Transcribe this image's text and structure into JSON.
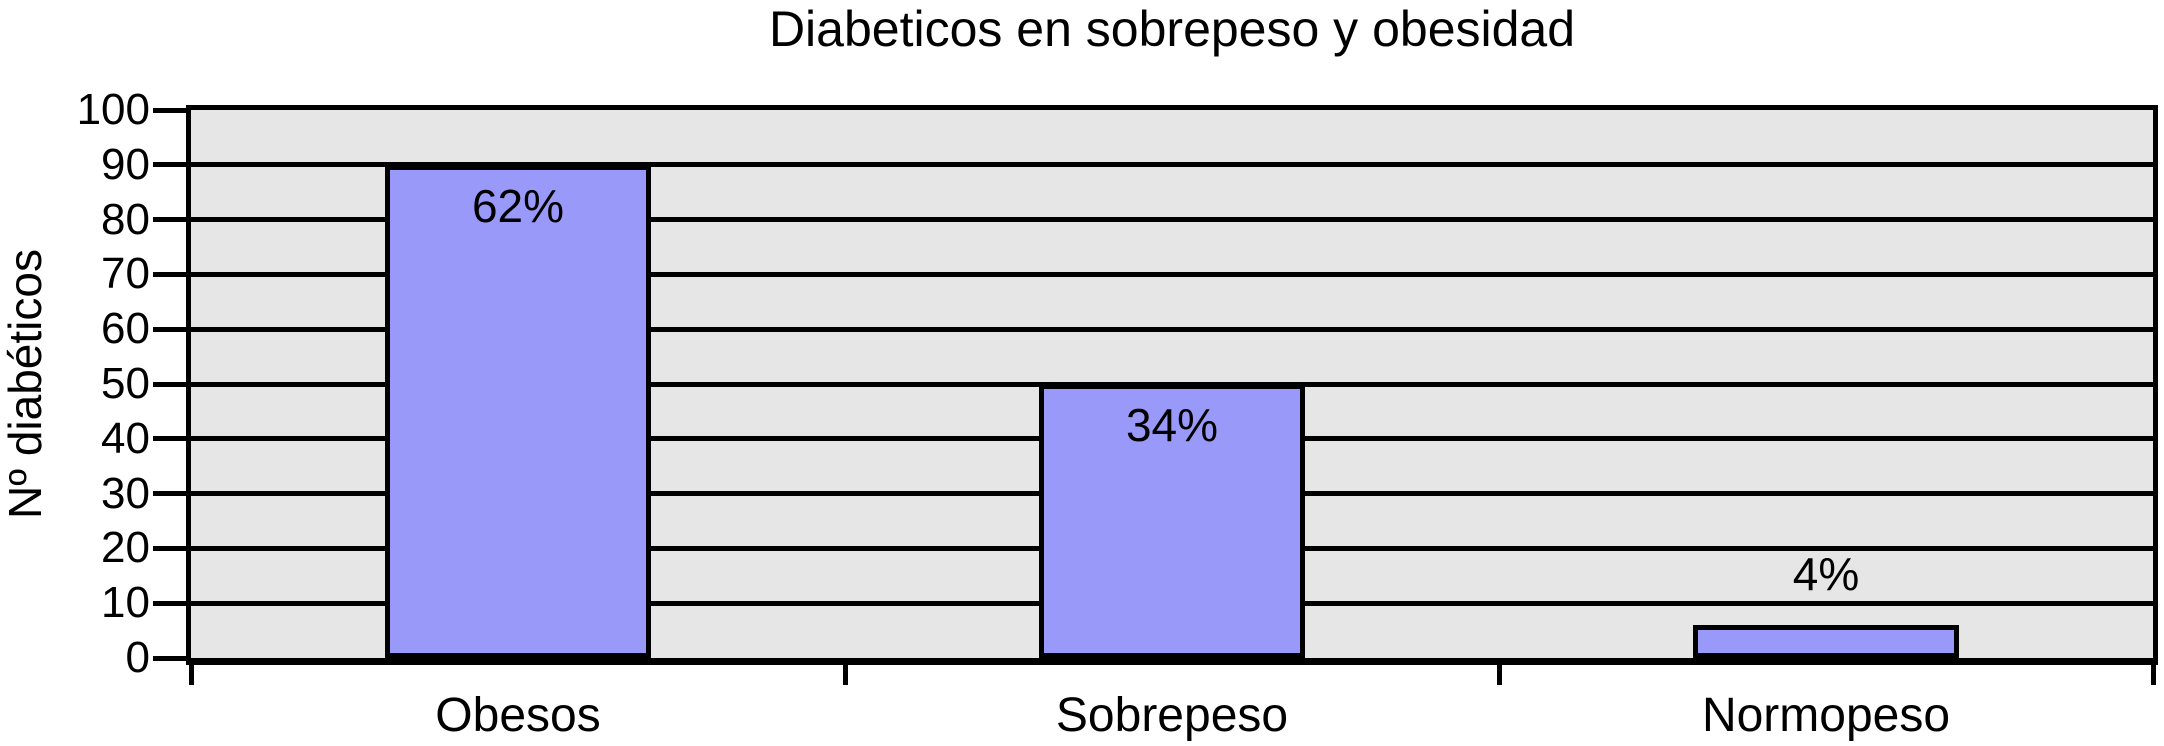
{
  "chart_data": {
    "type": "bar",
    "title": "Diabeticos en sobrepeso y obesidad",
    "ylabel": "Nº diabéticos",
    "xlabel": "",
    "categories": [
      "Obesos",
      "Sobrepeso",
      "Normopeso"
    ],
    "values": [
      90,
      50,
      6
    ],
    "bar_labels": [
      "62%",
      "34%",
      "4%"
    ],
    "ylim": [
      0,
      100
    ],
    "yticks": [
      0,
      10,
      20,
      30,
      40,
      50,
      60,
      70,
      80,
      90,
      100
    ],
    "grid": "horizontal-major",
    "legend": "none",
    "colors": {
      "bar_fill": "#9999FA",
      "bar_border": "#000000",
      "plot_background": "#E6E6E6",
      "gridline": "#000000",
      "text": "#000000",
      "outer_background": "#FFFFFF"
    }
  }
}
